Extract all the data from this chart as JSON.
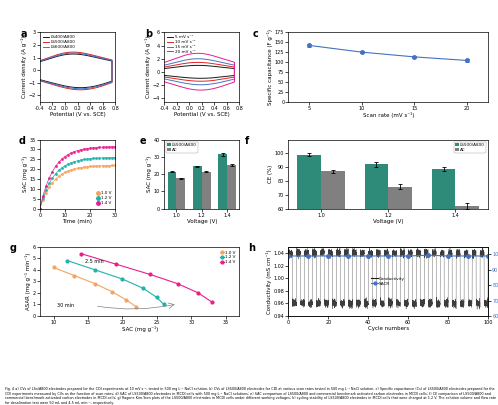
{
  "panel_a": {
    "label": "a",
    "xlabel": "Potential (V vs. SCE)",
    "ylabel": "Current density (A g⁻¹)",
    "xlim": [
      -0.4,
      0.8
    ],
    "ylim": [
      -2.5,
      3.0
    ],
    "legend": [
      "LS400/A800",
      "LS500/A800",
      "LS600/A800"
    ],
    "colors": [
      "#1a1a1a",
      "#e32322",
      "#4472c4"
    ]
  },
  "panel_b": {
    "label": "b",
    "xlabel": "Potential (V vs. SCE)",
    "ylabel": "Current density (A g⁻¹)",
    "xlim": [
      -0.4,
      0.8
    ],
    "ylim": [
      -4.5,
      6.0
    ],
    "legend": [
      "5 mV s⁻¹",
      "10 mV s⁻¹",
      "15 mV s⁻¹",
      "20 mV s⁻¹"
    ],
    "colors": [
      "#1a1a1a",
      "#e32322",
      "#4472c4",
      "#e91e8c"
    ]
  },
  "panel_c": {
    "label": "c",
    "xlabel": "Scan rate (mV s⁻¹)",
    "ylabel": "Specific capacitance (F g⁻¹)",
    "xlim": [
      3,
      22
    ],
    "ylim": [
      0,
      175
    ],
    "xticks": [
      5,
      10,
      15,
      20
    ],
    "x": [
      5,
      10,
      15,
      20
    ],
    "y": [
      142,
      125,
      113,
      104
    ],
    "yerr": [
      3,
      3,
      3,
      3
    ],
    "color": "#4472c4"
  },
  "panel_d": {
    "label": "d",
    "xlabel": "Time (min)",
    "ylabel": "SAC (mg g⁻¹)",
    "xlim": [
      0,
      30
    ],
    "ylim": [
      0,
      35
    ],
    "legend": [
      "1.0 V",
      "1.2 V",
      "1.4 V"
    ],
    "colors": [
      "#f4a460",
      "#20b2aa",
      "#e91e8c"
    ],
    "sac_max": [
      22,
      26,
      31.5
    ]
  },
  "panel_e": {
    "label": "e",
    "xlabel": "Voltage (V)",
    "ylabel": "SAC (mg g⁻¹)",
    "ylim": [
      0,
      40
    ],
    "yticks": [
      0,
      10,
      20,
      30,
      40
    ],
    "voltages": [
      "1.0",
      "1.2",
      "1.4"
    ],
    "ls500_values": [
      21.5,
      24.5,
      31.5
    ],
    "ac_values": [
      17.5,
      21.5,
      25.5
    ],
    "ls500_err": [
      0.5,
      0.5,
      0.8
    ],
    "ac_err": [
      0.4,
      0.5,
      0.6
    ],
    "colors": [
      "#2e8b7a",
      "#808080"
    ],
    "legend": [
      "LS500/A800",
      "AC"
    ]
  },
  "panel_f": {
    "label": "f",
    "xlabel": "Voltage (V)",
    "ylabel": "CE (%)",
    "ylim": [
      60,
      110
    ],
    "yticks": [
      60,
      70,
      80,
      90,
      100
    ],
    "voltages": [
      "1.0",
      "1.2",
      "1.4"
    ],
    "ls500_values": [
      99,
      92,
      89
    ],
    "ac_values": [
      87,
      76,
      62
    ],
    "ls500_err": [
      1,
      1.5,
      1.5
    ],
    "ac_err": [
      1,
      2,
      2
    ],
    "colors": [
      "#2e8b7a",
      "#808080"
    ],
    "legend": [
      "LS500/A800",
      "AC"
    ]
  },
  "panel_g": {
    "label": "g",
    "xlabel": "SAC (mg g⁻¹)",
    "ylabel": "ASAR (mg g⁻¹ min⁻¹)",
    "xlim": [
      8,
      37
    ],
    "ylim": [
      0,
      6
    ],
    "legend": [
      "1.0 V",
      "1.2 V",
      "1.4 V"
    ],
    "colors": [
      "#f4a460",
      "#20b2aa",
      "#e91e8c"
    ],
    "annotation1": "2.5 min",
    "annotation2": "30 min",
    "sac_10": [
      10.0,
      13.0,
      16.0,
      18.5,
      20.5,
      22.0
    ],
    "asar_10": [
      4.2,
      3.5,
      2.8,
      2.1,
      1.4,
      0.8
    ],
    "sac_12": [
      12.0,
      16.0,
      20.0,
      23.0,
      25.0,
      26.0
    ],
    "asar_12": [
      4.8,
      4.0,
      3.2,
      2.4,
      1.6,
      1.0
    ],
    "sac_14": [
      14.0,
      19.0,
      24.0,
      28.0,
      31.0,
      33.0
    ],
    "asar_14": [
      5.4,
      4.5,
      3.6,
      2.8,
      2.0,
      1.2
    ]
  },
  "panel_h": {
    "label": "h",
    "xlabel": "Cycle numbers",
    "ylabel_left": "Conductivity (mS cm⁻¹)",
    "ylabel_right": "SACR (%)",
    "xlim": [
      0,
      100
    ],
    "ylim_left": [
      0.94,
      1.05
    ],
    "ylim_right": [
      60,
      105
    ],
    "yticks_left": [
      0.94,
      0.96,
      0.98,
      1.0,
      1.02,
      1.04
    ],
    "yticks_right": [
      60,
      70,
      80,
      90,
      100
    ],
    "sacr_x": [
      0,
      10,
      20,
      30,
      40,
      50,
      60,
      70,
      80,
      90,
      100
    ],
    "sacr_y": [
      99,
      99,
      99,
      99,
      99,
      99,
      99,
      99.5,
      99,
      99,
      99
    ],
    "cond_color": "#1a1a1a",
    "sacr_color": "#4472c4",
    "legend": [
      "Conductivity",
      "SACR"
    ]
  },
  "caption": "Fig. 4 a) CVs of LSx/A800 electrodes prepared for the CDI experiments at 10 mV s⁻¹, tested in 500 mg L⁻¹ NaCl solution, b) CVs of LS500/A800 electrodes for CDI at various scan rates tested in 500 mg L⁻¹ NaCl solution, c) Specific capacitance (Cs) of LS500/A800 electrodes prepared for the CDI experiments measured by CVs as the function of scan rates; d) SAC of LS500/A800 electrodes in MCDI cells with 500 mg L⁻¹ NaCl solutions; e) SAC comparison of LS500/A800 and commercial benchmark activated carbon electrodes in MCDI cells; f) CE comparison of LS500/A800 and commercial benchmark activated carbon electrodes in MCDI cells; g) Ragone Kim-Yoon plots of the LS500/A800 electrodes in MCDI cells under different working voltages; h) cycling stability of LS500/A800 electrodes in MCDI cells that were charged at 1.2 V. The solution volume and flow rate for desalination test were 50 mL and 4.5 mL min⁻¹, respectively.",
  "background_color": "#ffffff"
}
